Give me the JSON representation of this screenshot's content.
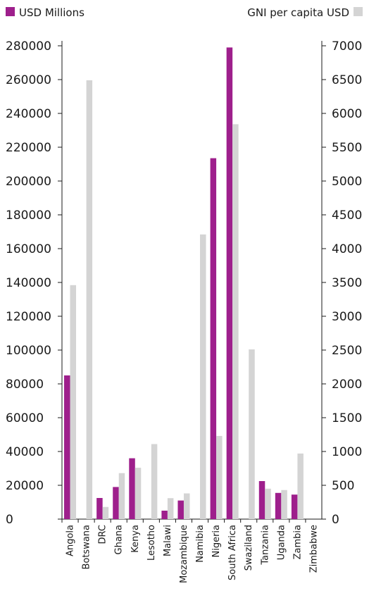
{
  "chart_data": {
    "type": "bar",
    "categories": [
      "Angola",
      "Botswana",
      "DRC",
      "Ghana",
      "Kenya",
      "Lesotho",
      "Malawi",
      "Mozambique",
      "Namibia",
      "Nigeria",
      "South Africa",
      "Swaziland",
      "Tanzania",
      "Uganda",
      "Zambia",
      "Zimbabwe"
    ],
    "series": [
      {
        "name": "USD Millions",
        "axis": "left",
        "color": "#9e1f8c",
        "values": [
          85000,
          null,
          12500,
          19000,
          36000,
          null,
          5000,
          11000,
          null,
          213500,
          279000,
          null,
          22500,
          15500,
          14500,
          null
        ]
      },
      {
        "name": "GNI per capita USD",
        "axis": "right",
        "color": "#d4d4d4",
        "values": [
          3460,
          6490,
          180,
          680,
          760,
          1110,
          310,
          380,
          4210,
          1230,
          5840,
          2510,
          450,
          430,
          970,
          0
        ]
      }
    ],
    "ylim_left": [
      0,
      280000
    ],
    "ylim_right": [
      0,
      7000
    ],
    "yticks_left": [
      "0",
      "20000",
      "40000",
      "60000",
      "80000",
      "100000",
      "120000",
      "140000",
      "160000",
      "180000",
      "200000",
      "220000",
      "240000",
      "260000",
      "280000"
    ],
    "yticks_right": [
      "0",
      "500",
      "1000",
      "1500",
      "2000",
      "2500",
      "3000",
      "3500",
      "4000",
      "4500",
      "5000",
      "5500",
      "6000",
      "6500",
      "7000"
    ],
    "legend_position": "top",
    "grid": false
  }
}
